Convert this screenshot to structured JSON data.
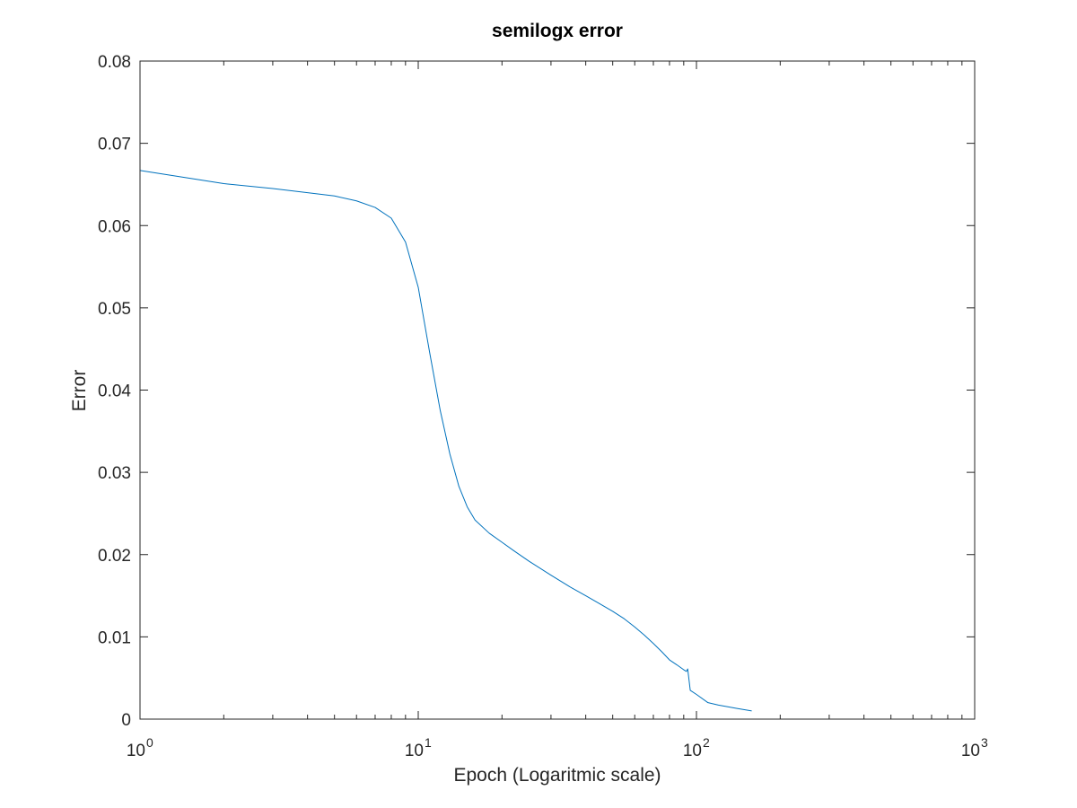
{
  "chart_data": {
    "type": "line",
    "title": "semilogx error",
    "xlabel": "Epoch (Logaritmic scale)",
    "ylabel": "Error",
    "xscale": "log",
    "xlim": [
      1,
      1000
    ],
    "ylim": [
      0,
      0.08
    ],
    "grid": false,
    "legend": "none",
    "x_ticks": [
      {
        "value": 1,
        "base": "10",
        "exp": "0"
      },
      {
        "value": 10,
        "base": "10",
        "exp": "1"
      },
      {
        "value": 100,
        "base": "10",
        "exp": "2"
      },
      {
        "value": 1000,
        "base": "10",
        "exp": "3"
      }
    ],
    "y_ticks": [
      {
        "value": 0,
        "label": "0"
      },
      {
        "value": 0.01,
        "label": "0.01"
      },
      {
        "value": 0.02,
        "label": "0.02"
      },
      {
        "value": 0.03,
        "label": "0.03"
      },
      {
        "value": 0.04,
        "label": "0.04"
      },
      {
        "value": 0.05,
        "label": "0.05"
      },
      {
        "value": 0.06,
        "label": "0.06"
      },
      {
        "value": 0.07,
        "label": "0.07"
      },
      {
        "value": 0.08,
        "label": "0.08"
      }
    ],
    "series": [
      {
        "color": "#0072bd",
        "x": [
          1,
          2,
          3,
          4,
          5,
          6,
          7,
          8,
          9,
          10,
          11,
          12,
          13,
          14,
          15,
          16,
          18,
          20,
          22,
          25,
          30,
          35,
          40,
          45,
          50,
          55,
          60,
          65,
          70,
          75,
          80,
          85,
          90,
          92,
          93,
          95,
          100,
          110,
          120,
          140,
          158
        ],
        "y": [
          0.0667,
          0.0651,
          0.0645,
          0.064,
          0.0636,
          0.063,
          0.0622,
          0.0609,
          0.058,
          0.0525,
          0.0445,
          0.0375,
          0.0322,
          0.0283,
          0.0258,
          0.0242,
          0.0226,
          0.0215,
          0.0205,
          0.0192,
          0.0175,
          0.0161,
          0.015,
          0.014,
          0.0131,
          0.0122,
          0.0112,
          0.0102,
          0.0092,
          0.0082,
          0.0072,
          0.0066,
          0.006,
          0.0058,
          0.0061,
          0.0035,
          0.003,
          0.002,
          0.0017,
          0.0013,
          0.001
        ]
      }
    ]
  }
}
